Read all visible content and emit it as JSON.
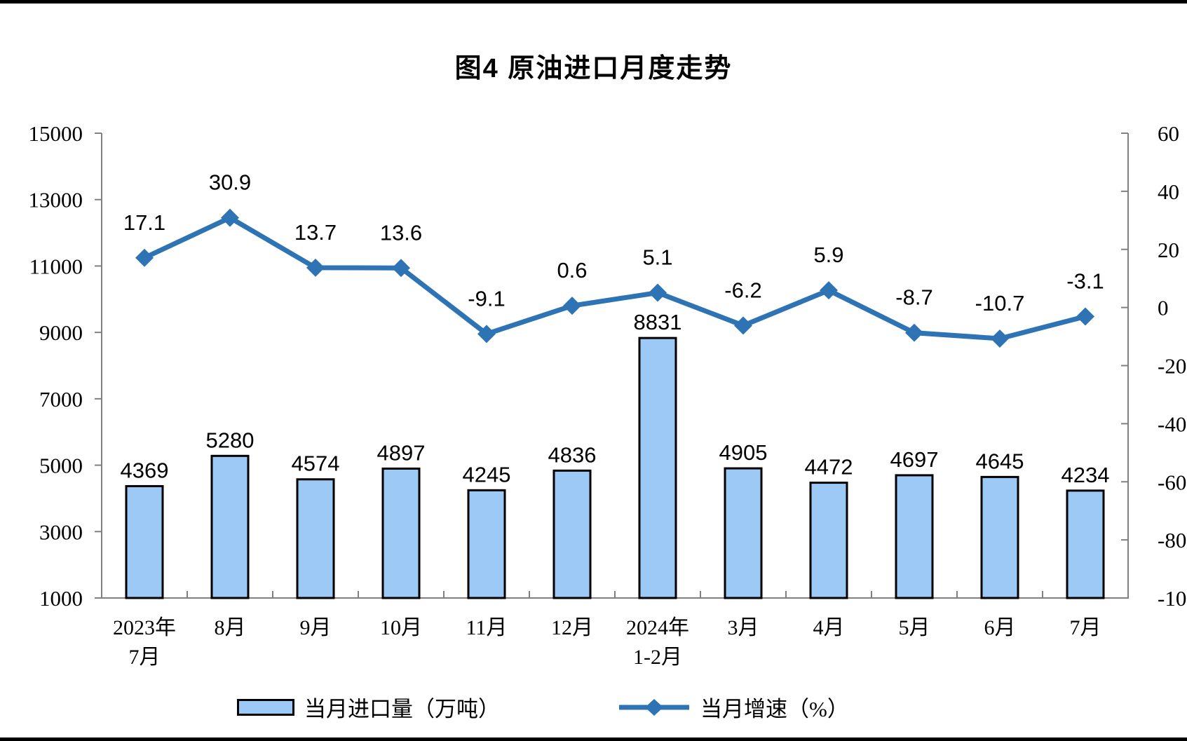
{
  "page": {
    "background": "#FFFFFF"
  },
  "chart_data": {
    "type": "bar",
    "subtype": "bar-line-combo",
    "title": "图4 原油进口月度走势",
    "categories": [
      "2023年\n7月",
      "8月",
      "9月",
      "10月",
      "11月",
      "12月",
      "2024年\n1-2月",
      "3月",
      "4月",
      "5月",
      "6月",
      "7月"
    ],
    "series": [
      {
        "name": "当月进口量（万吨）",
        "type": "bar",
        "axis": "left",
        "unit": "万吨",
        "values": [
          4369,
          5280,
          4574,
          4897,
          4245,
          4836,
          8831,
          4905,
          4472,
          4697,
          4645,
          4234
        ],
        "color": "#9DC9F7",
        "border_color": "#000000"
      },
      {
        "name": "当月增速（%）",
        "type": "line",
        "axis": "right",
        "unit": "%",
        "marker": "diamond",
        "values": [
          17.1,
          30.9,
          13.7,
          13.6,
          -9.1,
          0.6,
          5.1,
          -6.2,
          5.9,
          -8.7,
          -10.7,
          -3.1
        ],
        "color": "#2E74B5"
      }
    ],
    "left_axis": {
      "min": 1000,
      "max": 15000,
      "tick_step": 2000,
      "ticks": [
        "15000",
        "13000",
        "11000",
        "9000",
        "7000",
        "5000",
        "3000",
        "1000"
      ]
    },
    "right_axis": {
      "min": -100,
      "max": 60,
      "tick_step": 20,
      "ticks": [
        "60",
        "40",
        "20",
        "0",
        "-20",
        "-40",
        "-60",
        "-80",
        "-100"
      ]
    },
    "grid": false,
    "legend_position": "bottom",
    "colors": {
      "axis": "#808080",
      "text": "#000000"
    }
  }
}
